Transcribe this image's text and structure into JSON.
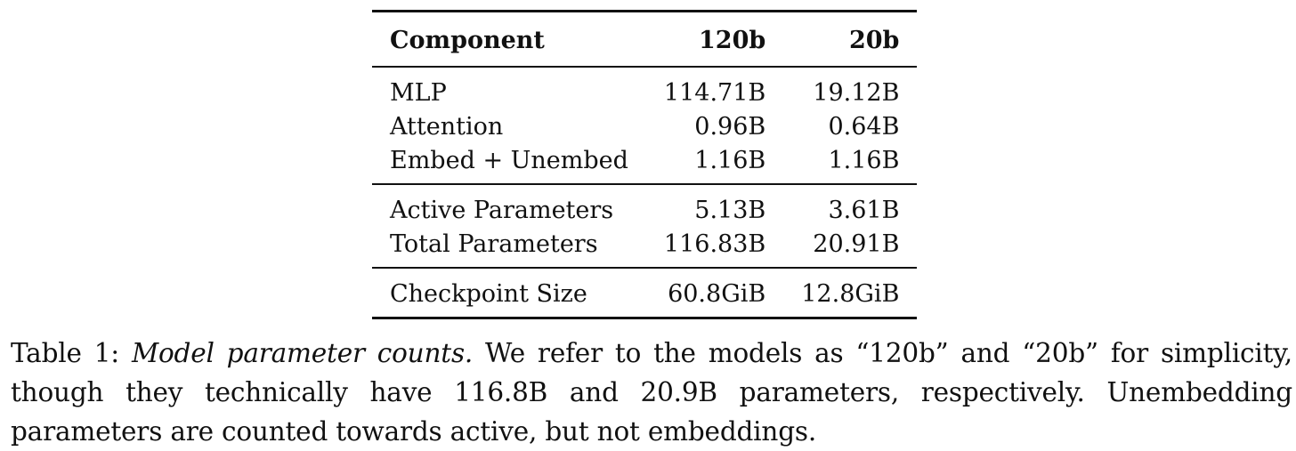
{
  "table": {
    "headers": [
      "Component",
      "120b",
      "20b"
    ],
    "groups": [
      [
        [
          "MLP",
          "114.71B",
          "19.12B"
        ],
        [
          "Attention",
          "0.96B",
          "0.64B"
        ],
        [
          "Embed + Unembed",
          "1.16B",
          "1.16B"
        ]
      ],
      [
        [
          "Active Parameters",
          "5.13B",
          "3.61B"
        ],
        [
          "Total Parameters",
          "116.83B",
          "20.91B"
        ]
      ],
      [
        [
          "Checkpoint Size",
          "60.8GiB",
          "12.8GiB"
        ]
      ]
    ]
  },
  "caption": {
    "label": "Table 1:",
    "title": "Model parameter counts.",
    "body": "We refer to the models as “120b” and “20b” for simplicity, though they technically have 116.8B and 20.9B parameters, respectively. Unembedding parameters are counted towards active, but not embeddings."
  }
}
